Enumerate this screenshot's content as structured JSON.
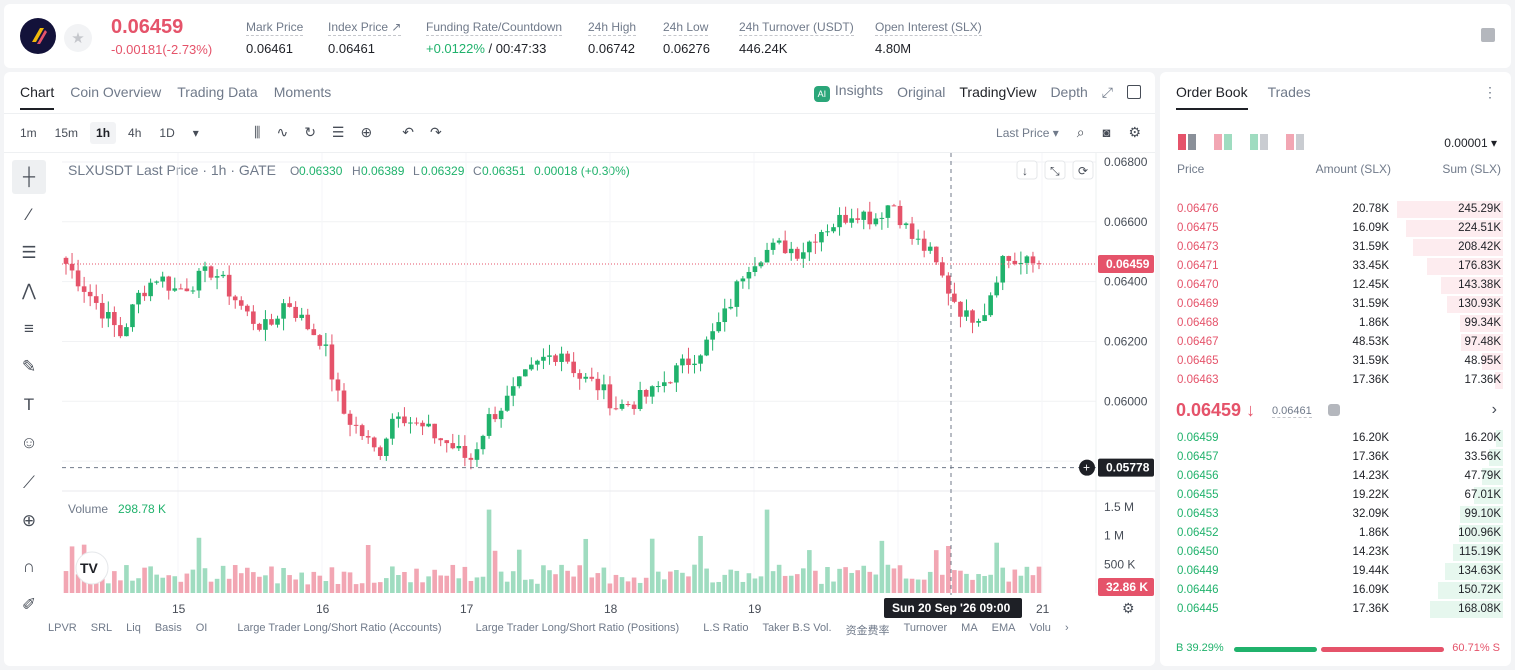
{
  "header": {
    "last_price": "0.06459",
    "change": "-0.00181(-2.73%)",
    "stats": [
      {
        "label": "Mark Price",
        "value": "0.06461"
      },
      {
        "label": "Index Price ↗",
        "value": "0.06461"
      },
      {
        "label": "Funding Rate/Countdown",
        "value": "+0.0122%",
        "value2": " / 00:47:33"
      },
      {
        "label": "24h High",
        "value": "0.06742"
      },
      {
        "label": "24h Low",
        "value": "0.06276"
      },
      {
        "label": "24h Turnover (USDT)",
        "value": "446.24K"
      },
      {
        "label": "Open Interest (SLX)",
        "value": "4.80M"
      }
    ]
  },
  "chart_tabs": [
    "Chart",
    "Coin Overview",
    "Trading Data",
    "Moments"
  ],
  "view_tabs": {
    "insights": "Insights",
    "original": "Original",
    "tradingview": "TradingView",
    "depth": "Depth",
    "ai": "AI"
  },
  "timeframes": [
    "1m",
    "15m",
    "1h",
    "4h",
    "1D"
  ],
  "timeframe_active": "1h",
  "price_type": "Last Price",
  "legend": {
    "symbol": "SLXUSDT Last Price · 1h · GATE",
    "o_label": "O",
    "o": "0.06330",
    "h_label": "H",
    "h": "0.06389",
    "l_label": "L",
    "l": "0.06329",
    "c_label": "C",
    "c": "0.06351",
    "chg": "0.00018 (+0.30%)"
  },
  "volume_label": "Volume",
  "volume_value": "298.78 K",
  "crosshair_label": "Sun 20 Sep '26   09:00",
  "indicators": [
    "LPVR",
    "SRL",
    "Liq",
    "Basis",
    "OI",
    "Large Trader Long/Short Ratio (Accounts)",
    "Large Trader Long/Short Ratio (Positions)",
    "L.S Ratio",
    "Taker B.S Vol.",
    "资金费率",
    "Turnover",
    "MA",
    "EMA",
    "Volu"
  ],
  "chart_data": {
    "type": "candlestick",
    "price_axis": [
      "0.06800",
      "0.06600",
      "0.06400",
      "0.06200",
      "0.06000"
    ],
    "ylim": [
      0.057,
      0.0683
    ],
    "last_price_label": "0.06459",
    "last_price": 0.06459,
    "crosshair_price_label": "0.05778",
    "crosshair_price": 0.05778,
    "x_ticks": [
      "15",
      "16",
      "17",
      "18",
      "19",
      "21"
    ],
    "volume_axis": [
      "1.5 M",
      "1 M",
      "500 K"
    ],
    "volume_ylim": [
      0,
      1600000
    ],
    "last_volume_label": "32.86 K",
    "ohlc_anchor_closes": [
      0.0646,
      0.0638,
      0.063,
      0.0622,
      0.0636,
      0.0642,
      0.0637,
      0.064,
      0.0644,
      0.0636,
      0.0628,
      0.0624,
      0.0634,
      0.0626,
      0.062,
      0.0597,
      0.059,
      0.0582,
      0.0598,
      0.0592,
      0.0589,
      0.0585,
      0.058,
      0.0594,
      0.06,
      0.0608,
      0.0614,
      0.0617,
      0.0608,
      0.0605,
      0.0598,
      0.06,
      0.0603,
      0.0609,
      0.0614,
      0.062,
      0.063,
      0.0645,
      0.065,
      0.0652,
      0.065,
      0.0657,
      0.066,
      0.0664,
      0.0661,
      0.0667,
      0.0655,
      0.065,
      0.0638,
      0.0628,
      0.063,
      0.0648,
      0.0646,
      0.0646
    ]
  },
  "orderbook": {
    "tabs": [
      "Order Book",
      "Trades"
    ],
    "precision": "0.00001 ▾",
    "headers": {
      "price": "Price",
      "amount": "Amount (SLX)",
      "sum": "Sum (SLX)"
    },
    "asks": [
      {
        "price": "0.06476",
        "amount": "20.78K",
        "sum": "245.29K",
        "depth": 0.96
      },
      {
        "price": "0.06475",
        "amount": "16.09K",
        "sum": "224.51K",
        "depth": 0.88
      },
      {
        "price": "0.06473",
        "amount": "31.59K",
        "sum": "208.42K",
        "depth": 0.82
      },
      {
        "price": "0.06471",
        "amount": "33.45K",
        "sum": "176.83K",
        "depth": 0.69
      },
      {
        "price": "0.06470",
        "amount": "12.45K",
        "sum": "143.38K",
        "depth": 0.56
      },
      {
        "price": "0.06469",
        "amount": "31.59K",
        "sum": "130.93K",
        "depth": 0.51
      },
      {
        "price": "0.06468",
        "amount": "1.86K",
        "sum": "99.34K",
        "depth": 0.39
      },
      {
        "price": "0.06467",
        "amount": "48.53K",
        "sum": "97.48K",
        "depth": 0.38
      },
      {
        "price": "0.06465",
        "amount": "31.59K",
        "sum": "48.95K",
        "depth": 0.19
      },
      {
        "price": "0.06463",
        "amount": "17.36K",
        "sum": "17.36K",
        "depth": 0.07
      }
    ],
    "mid_price": "0.06459 ↓",
    "mid_mark": "0.06461",
    "bids": [
      {
        "price": "0.06459",
        "amount": "16.20K",
        "sum": "16.20K",
        "depth": 0.06
      },
      {
        "price": "0.06457",
        "amount": "17.36K",
        "sum": "33.56K",
        "depth": 0.13
      },
      {
        "price": "0.06456",
        "amount": "14.23K",
        "sum": "47.79K",
        "depth": 0.19
      },
      {
        "price": "0.06455",
        "amount": "19.22K",
        "sum": "67.01K",
        "depth": 0.26
      },
      {
        "price": "0.06453",
        "amount": "32.09K",
        "sum": "99.10K",
        "depth": 0.39
      },
      {
        "price": "0.06452",
        "amount": "1.86K",
        "sum": "100.96K",
        "depth": 0.4
      },
      {
        "price": "0.06450",
        "amount": "14.23K",
        "sum": "115.19K",
        "depth": 0.45
      },
      {
        "price": "0.06449",
        "amount": "19.44K",
        "sum": "134.63K",
        "depth": 0.53
      },
      {
        "price": "0.06446",
        "amount": "16.09K",
        "sum": "150.72K",
        "depth": 0.59
      },
      {
        "price": "0.06445",
        "amount": "17.36K",
        "sum": "168.08K",
        "depth": 0.66
      }
    ],
    "buy_label": "B 39.29%",
    "sell_label": "60.71% S",
    "buy_ratio": 0.3929
  },
  "colors": {
    "up": "#20b26c",
    "down": "#e5536a",
    "up_soft": "#9fdcc0",
    "down_soft": "#f2a6b3"
  }
}
